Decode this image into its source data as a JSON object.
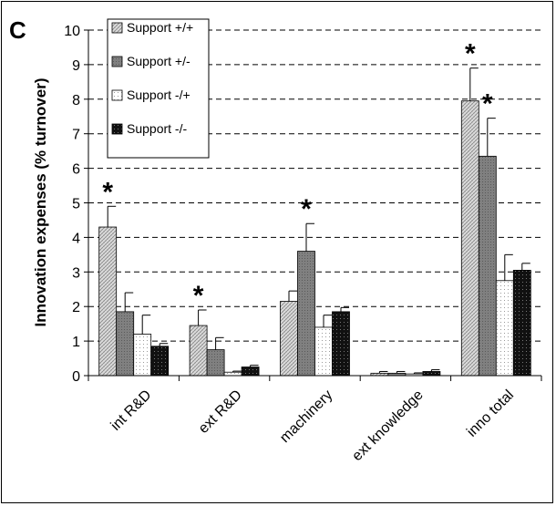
{
  "panel_label": "C",
  "chart_data": {
    "type": "bar",
    "ylabel": "Innovation expenses (% turnover)",
    "xlabel": "",
    "ylim": [
      0,
      10
    ],
    "yticks": [
      "0",
      "1",
      "2",
      "3",
      "4",
      "5",
      "6",
      "7",
      "8",
      "9",
      "10"
    ],
    "grid": "horizontal dashed",
    "legend_position": "top-left",
    "categories": [
      "int R&D",
      "ext R&D",
      "machinery",
      "ext knowledge",
      "inno total"
    ],
    "series": [
      {
        "name": "Support +/+",
        "pattern": "light-hatch",
        "values": [
          4.3,
          1.45,
          2.15,
          0.07,
          7.95
        ],
        "errors": [
          0.6,
          0.45,
          0.3,
          0.05,
          0.95
        ]
      },
      {
        "name": "Support +/-",
        "pattern": "gray",
        "values": [
          1.85,
          0.75,
          3.6,
          0.07,
          6.35
        ],
        "errors": [
          0.55,
          0.35,
          0.8,
          0.05,
          1.1
        ]
      },
      {
        "name": "Support -/+",
        "pattern": "white-dotted",
        "values": [
          1.2,
          0.1,
          1.4,
          0.05,
          2.75
        ],
        "errors": [
          0.55,
          0.03,
          0.35,
          0.03,
          0.75
        ]
      },
      {
        "name": "Support -/-",
        "pattern": "black-dotted",
        "values": [
          0.85,
          0.25,
          1.85,
          0.12,
          3.05
        ],
        "errors": [
          0.08,
          0.05,
          0.12,
          0.05,
          0.2
        ]
      }
    ],
    "annotations": [
      {
        "text": "*",
        "category_index": 0,
        "series_index": 0
      },
      {
        "text": "*",
        "category_index": 1,
        "series_index": 0
      },
      {
        "text": "*",
        "category_index": 2,
        "series_index": 1
      },
      {
        "text": "*",
        "category_index": 4,
        "series_index": 0
      },
      {
        "text": "*",
        "category_index": 4,
        "series_index": 1
      }
    ]
  },
  "colors": {
    "light_hatch_bg": "#dcdcdc",
    "light_hatch_line": "#7a7a7a",
    "gray_fill": "#808080",
    "gray_dots": "#5a5a5a",
    "white_fill": "#ffffff",
    "white_dots": "#9a9a9a",
    "black_fill": "#111111",
    "black_dots": "#777777",
    "grid": "#000000"
  }
}
